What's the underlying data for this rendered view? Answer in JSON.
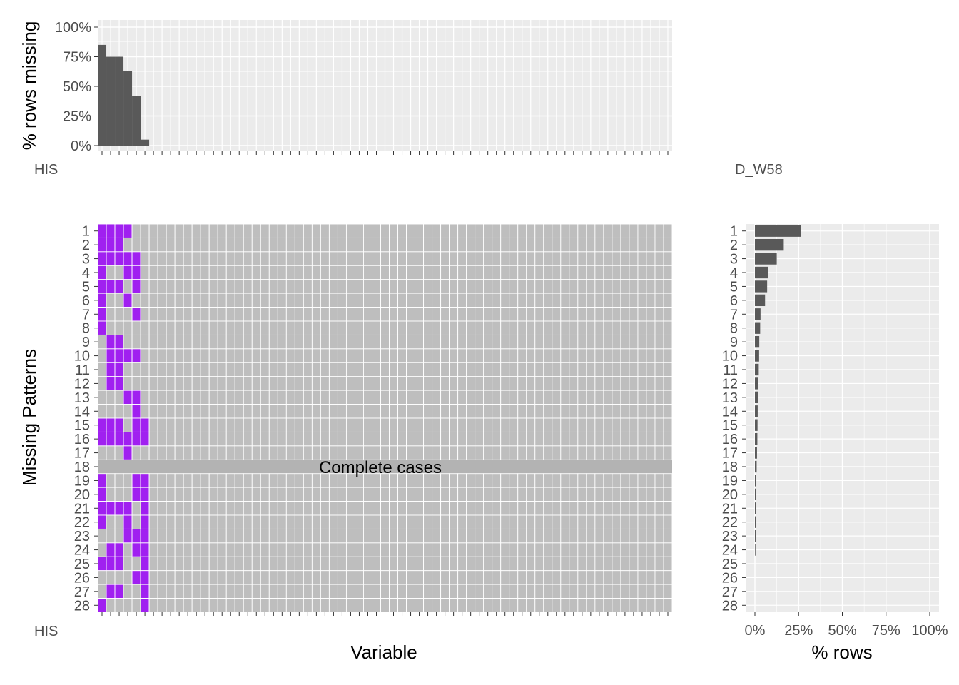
{
  "chart_data": [
    {
      "type": "bar",
      "panel": "top",
      "ylabel": "% rows missing",
      "ylim": [
        0,
        1
      ],
      "yticks": [
        "0%",
        "25%",
        "50%",
        "75%",
        "100%"
      ],
      "xtick_label_visible": "HIS",
      "xtick_label_visible_end": "D_W58",
      "n_variables": 67,
      "values": [
        0.85,
        0.75,
        0.75,
        0.63,
        0.42,
        0.05
      ],
      "colors": {
        "bar": "#595959",
        "panel": "#ebebeb",
        "grid": "#ffffff"
      }
    },
    {
      "type": "heatmap",
      "panel": "main",
      "xlabel": "Variable",
      "ylabel": "Missing Patterns",
      "annotation": "Complete cases",
      "xtick_label_visible": "HIS",
      "n_variables": 67,
      "row_labels": [
        "1",
        "2",
        "3",
        "4",
        "5",
        "6",
        "7",
        "8",
        "9",
        "10",
        "11",
        "12",
        "13",
        "14",
        "15",
        "16",
        "17",
        "18",
        "19",
        "20",
        "21",
        "22",
        "23",
        "24",
        "25",
        "26",
        "27",
        "28"
      ],
      "complete_row": 18,
      "missing_cells": [
        [
          0,
          1,
          2,
          3
        ],
        [
          0,
          1,
          2
        ],
        [
          0,
          1,
          2,
          3,
          4
        ],
        [
          0,
          3,
          4
        ],
        [
          0,
          1,
          2,
          4
        ],
        [
          0,
          3
        ],
        [
          0,
          4
        ],
        [
          0
        ],
        [
          1,
          2
        ],
        [
          1,
          2,
          3,
          4
        ],
        [
          1,
          2
        ],
        [
          1,
          2
        ],
        [
          3,
          4
        ],
        [
          4
        ],
        [
          0,
          1,
          2,
          4,
          5
        ],
        [
          0,
          1,
          2,
          3,
          4,
          5
        ],
        [
          3
        ],
        [],
        [
          0,
          4,
          5
        ],
        [
          0,
          4,
          5
        ],
        [
          0,
          1,
          2,
          3,
          5
        ],
        [
          0,
          3,
          5
        ],
        [
          3,
          4,
          5
        ],
        [
          1,
          2,
          4,
          5
        ],
        [
          0,
          1,
          2,
          5
        ],
        [
          4,
          5
        ],
        [
          1,
          2,
          5
        ],
        [
          0,
          5
        ]
      ],
      "colors": {
        "missing": "#a020f0",
        "present": "#bebebe",
        "complete": "#b3b3b3",
        "grid": "#ffffff"
      }
    },
    {
      "type": "bar",
      "panel": "right",
      "orientation": "horizontal",
      "xlabel": "% rows",
      "xlim": [
        0,
        1
      ],
      "xticks": [
        "0%",
        "25%",
        "50%",
        "75%",
        "100%"
      ],
      "row_labels": [
        "1",
        "2",
        "3",
        "4",
        "5",
        "6",
        "7",
        "8",
        "9",
        "10",
        "11",
        "12",
        "13",
        "14",
        "15",
        "16",
        "17",
        "18",
        "19",
        "20",
        "21",
        "22",
        "23",
        "24",
        "25",
        "26",
        "27",
        "28"
      ],
      "values": [
        0.265,
        0.165,
        0.125,
        0.075,
        0.07,
        0.058,
        0.032,
        0.03,
        0.025,
        0.024,
        0.022,
        0.02,
        0.018,
        0.016,
        0.015,
        0.014,
        0.012,
        0.01,
        0.008,
        0.007,
        0.006,
        0.005,
        0.004,
        0.003,
        0,
        0,
        0,
        0
      ],
      "colors": {
        "bar": "#595959",
        "panel": "#ebebeb",
        "grid": "#ffffff"
      }
    }
  ]
}
